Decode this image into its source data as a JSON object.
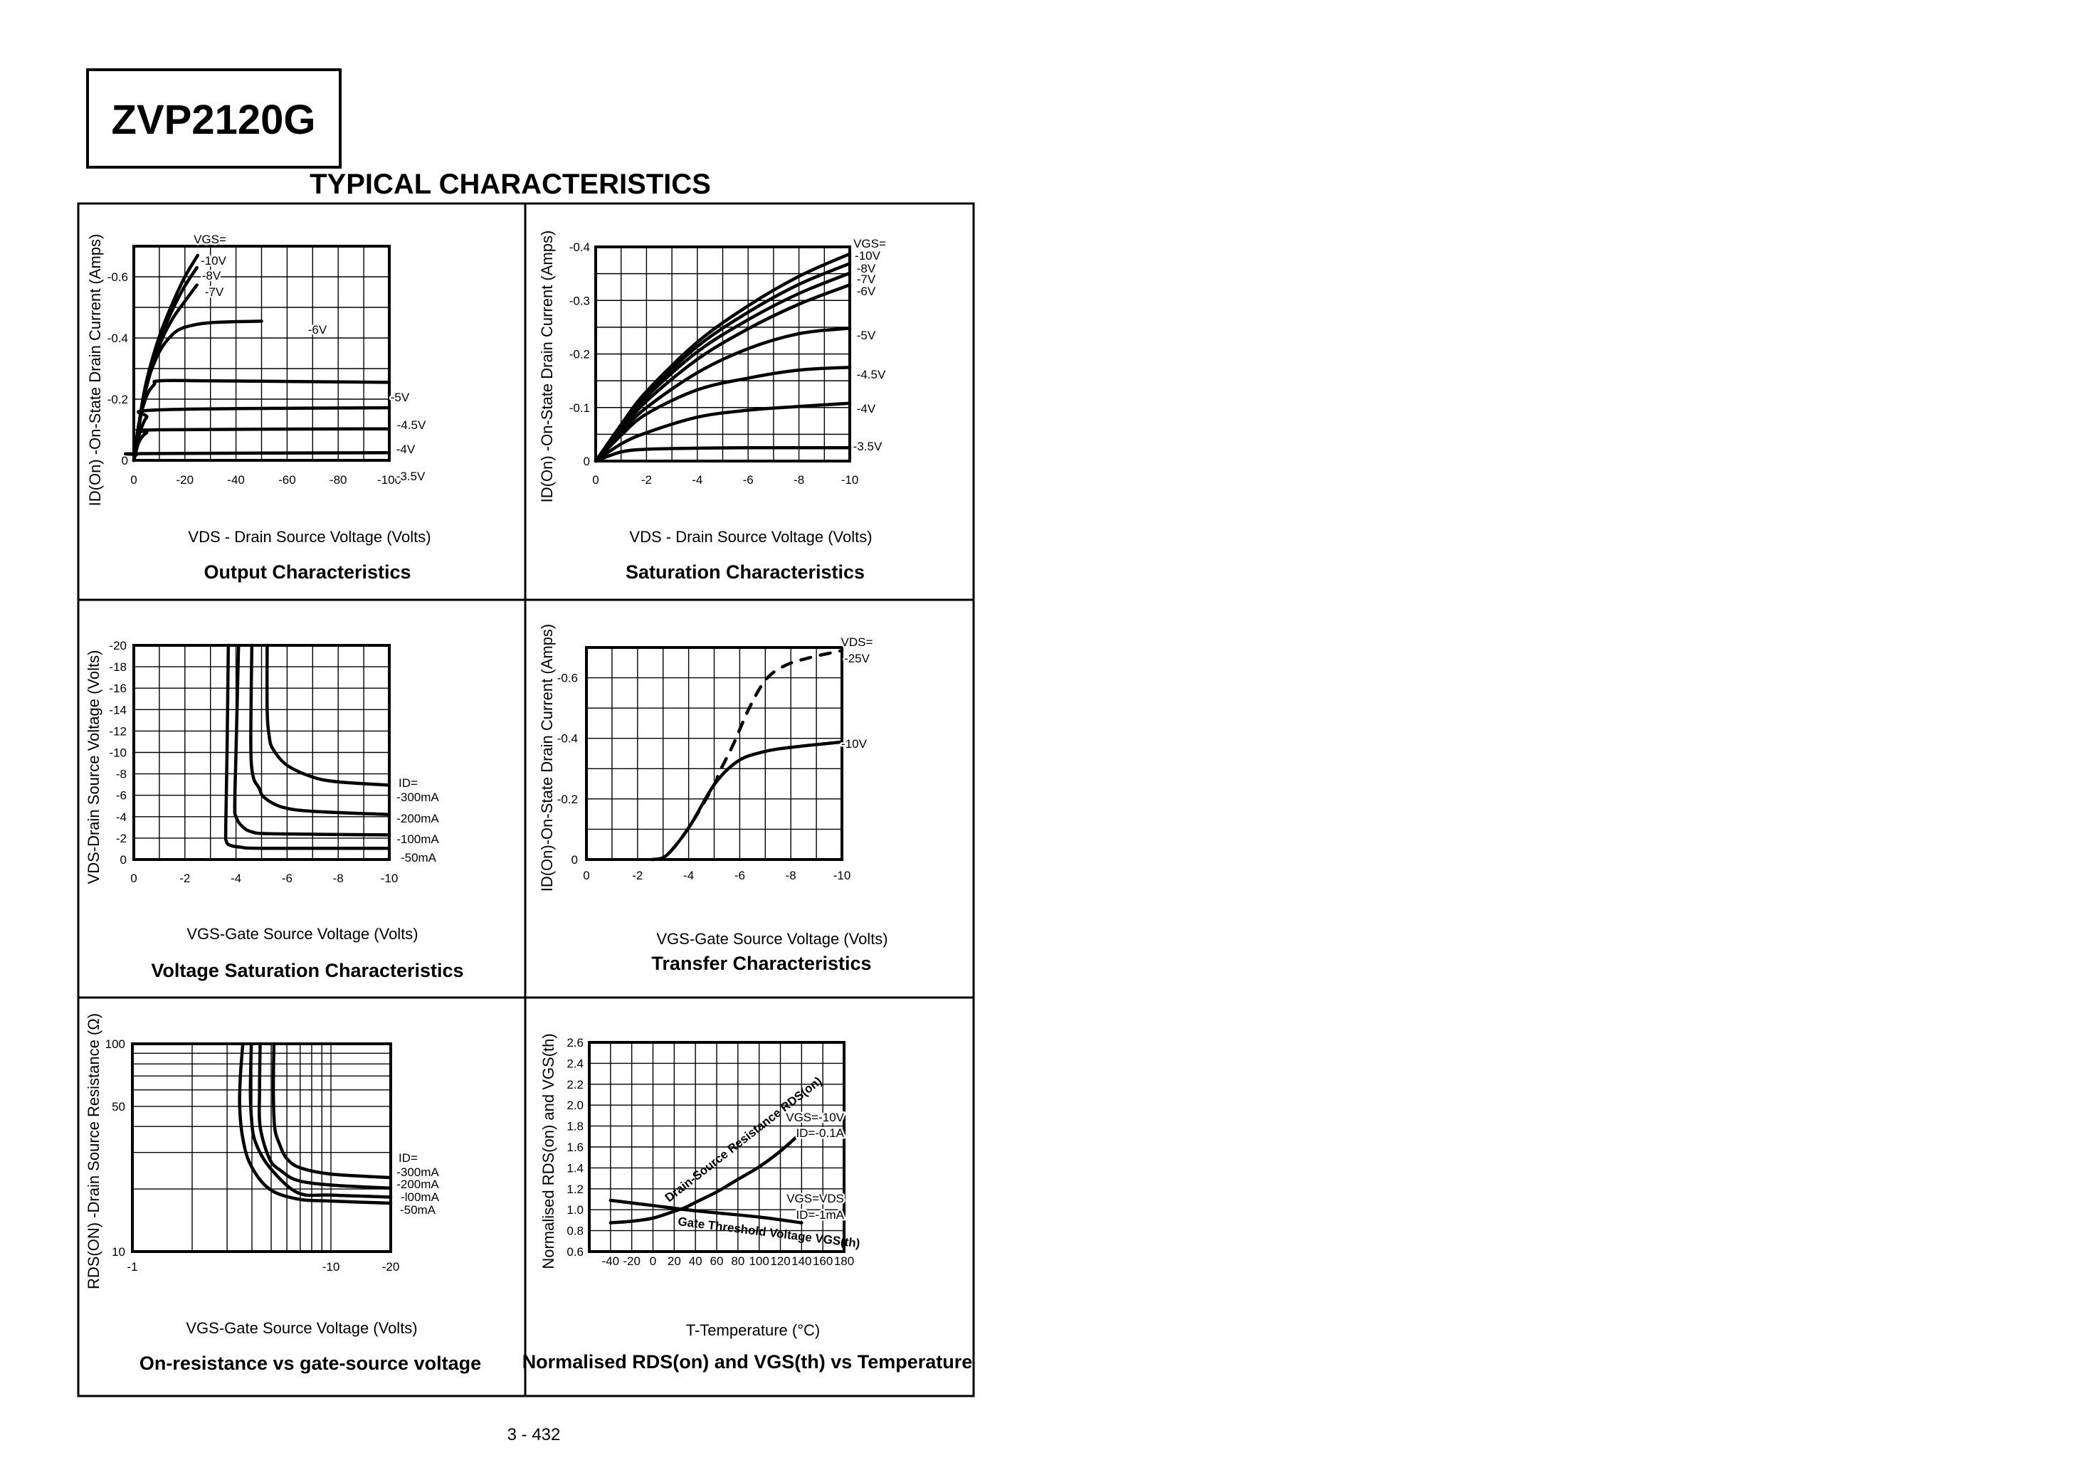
{
  "header": {
    "part_number": "ZVP2120G",
    "section_title": "TYPICAL CHARACTERISTICS"
  },
  "footer": {
    "page_number": "3 - 432"
  },
  "chart_data": [
    {
      "type": "line",
      "title": "Output Characteristics",
      "xlabel": "VDS - Drain Source Voltage (Volts)",
      "ylabel": "ID(On) -On-State Drain Current (Amps)",
      "xlim": [
        0,
        -100
      ],
      "ylim": [
        0,
        -0.7
      ],
      "xscale": "linear",
      "yscale": "linear",
      "grid": true,
      "grid_step": {
        "x": -10,
        "y": -0.1
      },
      "xticks": [
        {
          "v": 0,
          "label": "0"
        },
        {
          "v": -20,
          "label": "-20"
        },
        {
          "v": -40,
          "label": "-40"
        },
        {
          "v": -60,
          "label": "-60"
        },
        {
          "v": -80,
          "label": "-80"
        },
        {
          "v": -100,
          "label": "-100"
        }
      ],
      "yticks": [
        {
          "v": 0,
          "label": "0"
        },
        {
          "v": -0.2,
          "label": "-0.2"
        },
        {
          "v": -0.4,
          "label": "-0.4"
        },
        {
          "v": -0.6,
          "label": "-0.6"
        }
      ],
      "legend_title": "VGS=",
      "series": [
        {
          "name": "-10V",
          "style": "solid",
          "x": [
            0,
            -2,
            -5,
            -10,
            -15,
            -20,
            -25
          ],
          "y": [
            0,
            -0.12,
            -0.26,
            -0.405,
            -0.51,
            -0.6,
            -0.67
          ]
        },
        {
          "name": "-8V",
          "style": "solid",
          "x": [
            0,
            -2,
            -5,
            -10,
            -15,
            -20,
            -24.7
          ],
          "y": [
            0,
            -0.115,
            -0.25,
            -0.39,
            -0.49,
            -0.57,
            -0.63
          ]
        },
        {
          "name": "-7V",
          "style": "solid",
          "x": [
            0,
            -2,
            -5,
            -10,
            -15,
            -20,
            -24.7
          ],
          "y": [
            0,
            -0.11,
            -0.24,
            -0.375,
            -0.46,
            -0.52,
            -0.573
          ]
        },
        {
          "name": "-6V",
          "style": "solid",
          "x": [
            0,
            -3,
            -5,
            -10,
            -15,
            -20,
            -30,
            -50
          ],
          "y": [
            0,
            -0.17,
            -0.25,
            -0.355,
            -0.41,
            -0.435,
            -0.45,
            -0.455
          ]
        },
        {
          "name": "-5V",
          "style": "solid",
          "x": [
            0,
            -2,
            -5,
            -8,
            -10,
            -30,
            -100
          ],
          "y": [
            0,
            -0.12,
            -0.21,
            -0.248,
            -0.26,
            -0.26,
            -0.255
          ]
        },
        {
          "name": "-4.5V",
          "style": "solid",
          "x": [
            0,
            -2,
            -5,
            -10,
            -100
          ],
          "y": [
            0,
            -0.08,
            -0.14,
            -0.165,
            -0.172
          ]
        },
        {
          "name": "-4V",
          "style": "solid",
          "x": [
            0,
            -2,
            -5,
            -10,
            -100
          ],
          "y": [
            0,
            -0.06,
            -0.09,
            -0.1,
            -0.103
          ]
        },
        {
          "name": "-3.5V",
          "style": "solid",
          "x": [
            0,
            -1,
            -5,
            -100
          ],
          "y": [
            0,
            -0.018,
            -0.022,
            -0.025
          ]
        }
      ]
    },
    {
      "type": "line",
      "title": "Saturation Characteristics",
      "xlabel": "VDS - Drain Source Voltage (Volts)",
      "ylabel": "ID(On) -On-State Drain Current (Amps)",
      "xlim": [
        0,
        -10
      ],
      "ylim": [
        0,
        -0.4
      ],
      "xscale": "linear",
      "yscale": "linear",
      "grid": true,
      "grid_step": {
        "x": -1,
        "y": -0.05
      },
      "xticks": [
        {
          "v": 0,
          "label": "0"
        },
        {
          "v": -2,
          "label": "-2"
        },
        {
          "v": -4,
          "label": "-4"
        },
        {
          "v": -6,
          "label": "-6"
        },
        {
          "v": -8,
          "label": "-8"
        },
        {
          "v": -10,
          "label": "-10"
        }
      ],
      "yticks": [
        {
          "v": 0,
          "label": "0"
        },
        {
          "v": -0.1,
          "label": "-0.1"
        },
        {
          "v": -0.2,
          "label": "-0.2"
        },
        {
          "v": -0.3,
          "label": "-0.3"
        },
        {
          "v": -0.4,
          "label": "-0.4"
        }
      ],
      "legend_title": "VGS=",
      "series": [
        {
          "name": "-10V",
          "style": "solid",
          "x": [
            0,
            -1,
            -2,
            -4,
            -6,
            -8,
            -10
          ],
          "y": [
            0,
            -0.068,
            -0.13,
            -0.222,
            -0.29,
            -0.345,
            -0.387
          ]
        },
        {
          "name": "-8V",
          "style": "solid",
          "x": [
            0,
            -1,
            -2,
            -4,
            -6,
            -8,
            -10
          ],
          "y": [
            0,
            -0.065,
            -0.125,
            -0.214,
            -0.278,
            -0.33,
            -0.369
          ]
        },
        {
          "name": "-7V",
          "style": "solid",
          "x": [
            0,
            -1,
            -2,
            -4,
            -6,
            -8,
            -10
          ],
          "y": [
            0,
            -0.062,
            -0.12,
            -0.204,
            -0.264,
            -0.313,
            -0.351
          ]
        },
        {
          "name": "-6V",
          "style": "solid",
          "x": [
            0,
            -1,
            -2,
            -4,
            -6,
            -8,
            -10
          ],
          "y": [
            0,
            -0.058,
            -0.112,
            -0.19,
            -0.247,
            -0.293,
            -0.329
          ]
        },
        {
          "name": "-5V",
          "style": "solid",
          "x": [
            0,
            -1,
            -2,
            -4,
            -6,
            -8,
            -10
          ],
          "y": [
            0,
            -0.054,
            -0.1,
            -0.165,
            -0.21,
            -0.238,
            -0.248
          ]
        },
        {
          "name": "-4.5V",
          "style": "solid",
          "x": [
            0,
            -1,
            -2,
            -4,
            -6,
            -8,
            -10
          ],
          "y": [
            0,
            -0.048,
            -0.088,
            -0.133,
            -0.155,
            -0.17,
            -0.175
          ]
        },
        {
          "name": "-4V",
          "style": "solid",
          "x": [
            0,
            -1,
            -2,
            -4,
            -6,
            -8,
            -10
          ],
          "y": [
            0,
            -0.032,
            -0.053,
            -0.082,
            -0.095,
            -0.102,
            -0.108
          ]
        },
        {
          "name": "-3.5V",
          "style": "solid",
          "x": [
            0,
            -1,
            -2,
            -4,
            -6,
            -8,
            -10
          ],
          "y": [
            0,
            -0.017,
            -0.022,
            -0.024,
            -0.025,
            -0.025,
            -0.025
          ]
        }
      ]
    },
    {
      "type": "line",
      "title": "Voltage Saturation Characteristics",
      "xlabel": "VGS-Gate Source Voltage  (Volts)",
      "ylabel": "VDS-Drain Source  Voltage (Volts)",
      "xlim": [
        0,
        -10
      ],
      "ylim": [
        0,
        -20
      ],
      "xscale": "linear",
      "yscale": "linear",
      "grid": true,
      "grid_step": {
        "x": -1,
        "y": -2
      },
      "xticks": [
        {
          "v": 0,
          "label": "0"
        },
        {
          "v": -2,
          "label": "-2"
        },
        {
          "v": -4,
          "label": "-4"
        },
        {
          "v": -6,
          "label": "-6"
        },
        {
          "v": -8,
          "label": "-8"
        },
        {
          "v": -10,
          "label": "-10"
        }
      ],
      "yticks": [
        {
          "v": 0,
          "label": "0"
        },
        {
          "v": -2,
          "label": "-2"
        },
        {
          "v": -4,
          "label": "-4"
        },
        {
          "v": -6,
          "label": "-6"
        },
        {
          "v": -8,
          "label": "-8"
        },
        {
          "v": -10,
          "label": "-10"
        },
        {
          "v": -12,
          "label": "-12"
        },
        {
          "v": -14,
          "label": "-14"
        },
        {
          "v": -16,
          "label": "-16"
        },
        {
          "v": -18,
          "label": "-18"
        },
        {
          "v": -20,
          "label": "-20"
        }
      ],
      "legend_title": "ID=",
      "series": [
        {
          "name": "-300mA",
          "style": "solid",
          "x": [
            -5.22,
            -5.22,
            -5.3,
            -5.45,
            -6,
            -7,
            -8,
            -10
          ],
          "y": [
            -20,
            -14,
            -11.5,
            -10.3,
            -8.8,
            -7.7,
            -7.25,
            -6.95
          ]
        },
        {
          "name": "-200mA",
          "style": "solid",
          "x": [
            -4.62,
            -4.58,
            -4.6,
            -4.7,
            -4.9,
            -5.1,
            -5.8,
            -7,
            -10
          ],
          "y": [
            -20,
            -12,
            -9,
            -7.5,
            -6.7,
            -5.8,
            -4.9,
            -4.5,
            -4.2
          ]
        },
        {
          "name": "-100mA",
          "style": "solid",
          "x": [
            -4.1,
            -4.0,
            -3.95,
            -4.0,
            -4.2,
            -4.6,
            -5.5,
            -10
          ],
          "y": [
            -20,
            -10,
            -5,
            -4,
            -3.2,
            -2.6,
            -2.4,
            -2.3
          ]
        },
        {
          "name": "-50mA",
          "style": "solid",
          "x": [
            -3.7,
            -3.65,
            -3.6,
            -3.62,
            -3.8,
            -4.2,
            -5,
            -10
          ],
          "y": [
            -20,
            -10,
            -3,
            -1.7,
            -1.3,
            -1.15,
            -1.05,
            -1.05
          ]
        }
      ]
    },
    {
      "type": "line",
      "title": "Transfer Characteristics",
      "xlabel": "VGS-Gate Source Voltage (Volts)",
      "ylabel": "ID(On)-On-State Drain Current  (Amps)",
      "xlim": [
        0,
        -10
      ],
      "ylim": [
        0,
        -0.7
      ],
      "xscale": "linear",
      "yscale": "linear",
      "grid": true,
      "grid_step": {
        "x": -1,
        "y": -0.1
      },
      "xticks": [
        {
          "v": 0,
          "label": "0"
        },
        {
          "v": -2,
          "label": "-2"
        },
        {
          "v": -4,
          "label": "-4"
        },
        {
          "v": -6,
          "label": "-6"
        },
        {
          "v": -8,
          "label": "-8"
        },
        {
          "v": -10,
          "label": "-10"
        }
      ],
      "yticks": [
        {
          "v": 0,
          "label": "0"
        },
        {
          "v": -0.2,
          "label": "-0.2"
        },
        {
          "v": -0.4,
          "label": "-0.4"
        },
        {
          "v": -0.6,
          "label": "-0.6"
        }
      ],
      "legend_title": "VDS=",
      "series": [
        {
          "name": "-25V",
          "style": "dashed",
          "x": [
            -2.58,
            -3.14,
            -4.02,
            -5,
            -5.19,
            -5.74,
            -6.39,
            -7.04,
            -7.79,
            -8.72,
            -10
          ],
          "y": [
            0,
            -0.014,
            -0.107,
            -0.247,
            -0.286,
            -0.379,
            -0.503,
            -0.596,
            -0.641,
            -0.666,
            -0.69
          ]
        },
        {
          "name": "-10V",
          "style": "solid",
          "x": [
            -2.58,
            -3.14,
            -4.02,
            -5,
            -5.93,
            -6.95,
            -8.07,
            -10
          ],
          "y": [
            0,
            -0.014,
            -0.107,
            -0.247,
            -0.325,
            -0.356,
            -0.371,
            -0.388
          ]
        }
      ]
    },
    {
      "type": "line",
      "title": "On-resistance vs gate-source voltage",
      "xlabel": "VGS-Gate Source Voltage (Volts)",
      "ylabel": "RDS(ON) -Drain Source Resistance (Ω)",
      "xlim": [
        -1,
        -20
      ],
      "ylim": [
        10,
        100
      ],
      "xscale": "log",
      "yscale": "log",
      "grid": true,
      "xticks": [
        {
          "v": -1,
          "label": "-1"
        },
        {
          "v": -10,
          "label": "-10"
        },
        {
          "v": -20,
          "label": "-20"
        }
      ],
      "yticks": [
        {
          "v": 10,
          "label": "10"
        },
        {
          "v": 50,
          "label": "50"
        },
        {
          "v": 100,
          "label": "100"
        }
      ],
      "legend_title": "ID=",
      "series": [
        {
          "name": "-300mA",
          "style": "solid",
          "x": [
            -5.16,
            -5.13,
            -5.2,
            -5.5,
            -6,
            -7,
            -10,
            -20
          ],
          "y": [
            100,
            60,
            40,
            33,
            28,
            25.3,
            23.6,
            22.7
          ]
        },
        {
          "name": "-200mA",
          "style": "solid",
          "x": [
            -4.4,
            -4.37,
            -4.4,
            -4.9,
            -5.6,
            -6.8,
            -10,
            -20
          ],
          "y": [
            100,
            60,
            40,
            28,
            24.5,
            22,
            20.9,
            20.2
          ]
        },
        {
          "name": "-l00mA",
          "style": "solid",
          "x": [
            -3.97,
            -3.93,
            -3.97,
            -4.15,
            -4.9,
            -6.8,
            -10,
            -20
          ],
          "y": [
            100,
            60,
            45,
            34,
            25.5,
            19.2,
            18.7,
            18.3
          ]
        },
        {
          "name": "-50mA",
          "style": "solid",
          "x": [
            -3.6,
            -3.5,
            -3.47,
            -3.6,
            -3.95,
            -4.9,
            -6.8,
            -10,
            -20
          ],
          "y": [
            100,
            70,
            50,
            35,
            26,
            20,
            17.9,
            17.5,
            17.1
          ]
        }
      ]
    },
    {
      "type": "line",
      "title": "Normalised RDS(on) and VGS(th) vs Temperature",
      "xlabel": "T-Temperature (°C)",
      "ylabel": "Normalised RDS(on) and VGS(th)",
      "xlim": [
        -60,
        180
      ],
      "ylim": [
        0.6,
        2.6
      ],
      "xscale": "linear",
      "yscale": "linear",
      "grid": true,
      "grid_step": {
        "x": 20,
        "y": 0.2
      },
      "xticks": [
        {
          "v": -40,
          "label": "-40"
        },
        {
          "v": -20,
          "label": "-20"
        },
        {
          "v": 0,
          "label": "0"
        },
        {
          "v": 20,
          "label": "20"
        },
        {
          "v": 40,
          "label": "40"
        },
        {
          "v": 60,
          "label": "60"
        },
        {
          "v": 80,
          "label": "80"
        },
        {
          "v": 100,
          "label": "100"
        },
        {
          "v": 120,
          "label": "120"
        },
        {
          "v": 140,
          "label": "140"
        },
        {
          "v": 160,
          "label": "160"
        },
        {
          "v": 180,
          "label": "180"
        }
      ],
      "yticks": [
        {
          "v": 0.6,
          "label": "0.6"
        },
        {
          "v": 0.8,
          "label": "0.8"
        },
        {
          "v": 1.0,
          "label": "1.0"
        },
        {
          "v": 1.2,
          "label": "1.2"
        },
        {
          "v": 1.4,
          "label": "1.4"
        },
        {
          "v": 1.6,
          "label": "1.6"
        },
        {
          "v": 1.8,
          "label": "1.8"
        },
        {
          "v": 2.0,
          "label": "2.0"
        },
        {
          "v": 2.2,
          "label": "2.2"
        },
        {
          "v": 2.4,
          "label": "2.4"
        },
        {
          "v": 2.6,
          "label": "2.6"
        }
      ],
      "series": [
        {
          "name": "Drain-Source Resistance RDS(on)",
          "style": "solid",
          "x": [
            -40,
            -20,
            0,
            20,
            30,
            40,
            60,
            80,
            100,
            120,
            140
          ],
          "y": [
            0.875,
            0.89,
            0.92,
            0.985,
            1.02,
            1.07,
            1.17,
            1.29,
            1.41,
            1.56,
            1.74
          ]
        },
        {
          "name": "Gate Threshold Voltage VGS(th)",
          "style": "solid",
          "x": [
            -40,
            0,
            40,
            100,
            140
          ],
          "y": [
            1.09,
            1.04,
            0.99,
            0.93,
            0.875
          ]
        }
      ],
      "annotations": [
        "VGS=-10V",
        "ID=-0.1A",
        "VGS=VDS",
        "ID=-1mA"
      ]
    }
  ]
}
